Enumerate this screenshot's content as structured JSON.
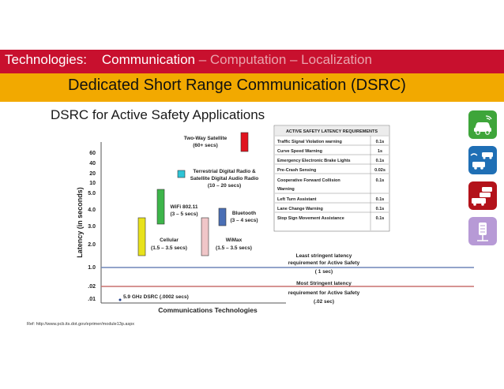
{
  "header": {
    "technologies_label": "Technologies:",
    "communication_label": "Communication",
    "rest_label": " – Computation – Localization"
  },
  "subheader": {
    "title": "Dedicated Short Range Communication (DSRC)"
  },
  "heading": "DSRC for Active Safety Applications",
  "colors": {
    "red": "#c8102e",
    "amber": "#f2a900",
    "green": "#3ea53a",
    "blue": "#1f6fb5",
    "dark_red": "#b3121a",
    "lavender": "#b79ad6"
  },
  "side_icons": [
    "green-car-icon",
    "blue-cars-icon",
    "red-cars-icon",
    "lavender-roadside-icon"
  ],
  "chart": {
    "y_axis_title": "Latency (in seconds)",
    "x_axis_title": "Communications Technologies",
    "y_ticks": [
      "60",
      "40",
      "20",
      "10",
      "5.0",
      "4.0",
      "3.0",
      "2.0",
      "1.0",
      ".02",
      ".01"
    ],
    "technologies": [
      {
        "label_line1": "Two-Way Satellite",
        "label_line2": "(60+ secs)",
        "color": "#e0141f"
      },
      {
        "label_line1": "Terrestrial Digital Radio &",
        "label_line2": "Satellite Digital Audio Radio",
        "label_line3": "(10 – 20 secs)",
        "color": "#2ec4d6"
      },
      {
        "label_line1": "WiFi 802.11",
        "label_line2": "(3 – 5 secs)",
        "color": "#3db54a"
      },
      {
        "label_line1": "Bluetooth",
        "label_line2": "(3 – 4 secs)",
        "color": "#4a6fb5"
      },
      {
        "label_line1": "Cellular",
        "label_line2": "(1.5 – 3.5 secs)",
        "color": "#e8e21b"
      },
      {
        "label_line1": "WiMax",
        "label_line2": "(1.5 – 3.5 secs)",
        "color": "#f0c6c8"
      },
      {
        "label_line1": "5.9 GHz DSRC (.0002 secs)"
      }
    ],
    "least_label": [
      "Least stringent latency",
      "requirement for Active Safety",
      "( 1 sec)"
    ],
    "most_label": [
      "Most Stringent latency",
      "requirement for Active Safety",
      "(.02 sec)"
    ]
  },
  "latency_table": {
    "title": "ACTIVE SAFETY LATENCY REQUIREMENTS",
    "rows": [
      {
        "name": "Traffic Signal Violation warning",
        "value": "0.1s"
      },
      {
        "name": "Curve Speed Warning",
        "value": "1s"
      },
      {
        "name": "Emergency Electronic Brake Lights",
        "value": "0.1s"
      },
      {
        "name": "Pre-Crash Sensing",
        "value": "0.02s"
      },
      {
        "name": "Cooperative Forward Collision",
        "name2": "Warning",
        "value": "0.1s"
      },
      {
        "name": "Left Turn Assistant",
        "value": "0.1s"
      },
      {
        "name": "Lane Change Warning",
        "value": "0.1s"
      },
      {
        "name": "Stop Sign Movement Assistance",
        "value": "0.1s"
      }
    ]
  },
  "reference": "Ref: http://www.pcb.its.dot.gov/eprimer/module13p.aspx"
}
